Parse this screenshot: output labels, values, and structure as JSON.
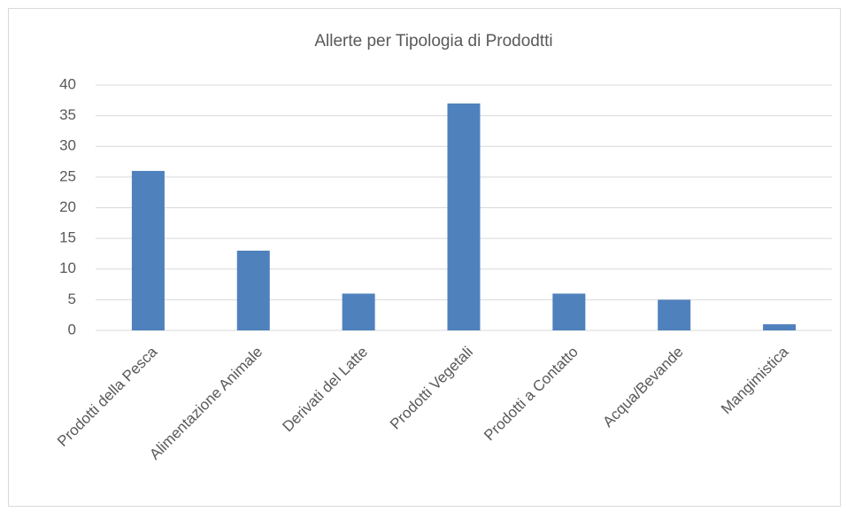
{
  "chart_data": {
    "type": "bar",
    "title": "Allerte per Tipologia di Prododtti",
    "categories": [
      "Prodotti della Pesca",
      "Alimentazione Animale",
      "Derivati del Latte",
      "Prodotti Vegetali",
      "Prodotti a Contatto",
      "Acqua/Bevande",
      "Mangimistica"
    ],
    "values": [
      26,
      13,
      6,
      37,
      6,
      5,
      1
    ],
    "color": "#4f81bd",
    "ylim": [
      0,
      40
    ],
    "yticks": [
      0,
      5,
      10,
      15,
      20,
      25,
      30,
      35,
      40
    ],
    "grid": true
  }
}
